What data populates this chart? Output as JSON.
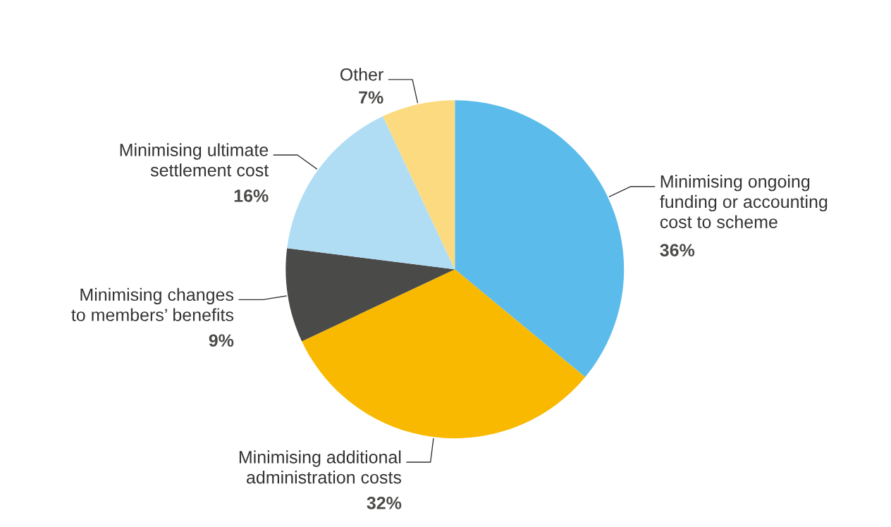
{
  "chart_data": {
    "type": "pie",
    "categories": [
      "Minimising ongoing\nfunding or accounting\ncost to scheme",
      "Minimising additional\nadministration costs",
      "Minimising changes\nto members’ benefits",
      "Minimising ultimate\nsettlement cost",
      "Other"
    ],
    "values": [
      36,
      32,
      9,
      16,
      7
    ],
    "value_labels": [
      "36%",
      "32%",
      "9%",
      "16%",
      "7%"
    ],
    "colors": [
      "#5bbcec",
      "#f9b900",
      "#4a4a48",
      "#b0ddf4",
      "#fcdb80"
    ],
    "legend": false
  }
}
